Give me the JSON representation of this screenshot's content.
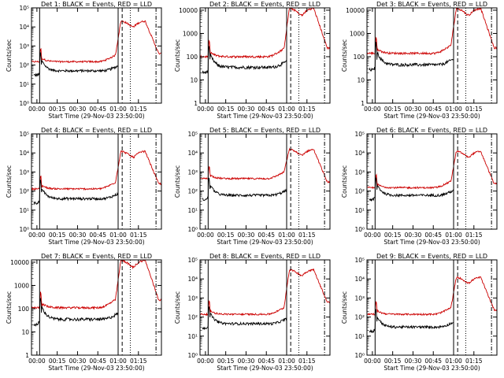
{
  "chart_data": {
    "type": "line",
    "layout": "3x3 grid",
    "shared_xlabel": "Start Time (29-Nov-03 23:50:00)",
    "shared_ylabel": "Counts/sec",
    "x_ticks": [
      "00:00",
      "00:15",
      "00:30",
      "00:45",
      "01:00",
      "01:15"
    ],
    "x_range_minutes": [
      -4,
      92
    ],
    "series_colors": {
      "Events": "#000000",
      "LLD": "#cc0000"
    },
    "panels": [
      {
        "title": "Det 1: BLACK = Events, RED = LLD",
        "y_ticks": [
          "10⁰",
          "10¹",
          "10²",
          "10³",
          "10⁴",
          "10⁵"
        ],
        "ylog": [
          0,
          5
        ],
        "levels": {
          "black_base": 50,
          "red_base": 150,
          "red_peak": 20000
        },
        "vlines": {
          "solid": [
            2,
            60
          ],
          "dashed": [
            63
          ],
          "dotted": [
            69
          ],
          "dashdot": [
            88
          ]
        }
      },
      {
        "title": "Det 2: BLACK = Events, RED = LLD",
        "y_ticks": [
          "1",
          "10",
          "100",
          "1000",
          "10000"
        ],
        "ylog": [
          0,
          4.1
        ],
        "levels": {
          "black_base": 35,
          "red_base": 100,
          "red_peak": 12000
        },
        "vlines": {
          "solid": [
            2,
            60
          ],
          "dashed": [
            63
          ],
          "dotted": [
            69
          ],
          "dashdot": [
            88
          ]
        }
      },
      {
        "title": "Det 3: BLACK = Events, RED = LLD",
        "y_ticks": [
          "1",
          "10",
          "100",
          "1000",
          "10000"
        ],
        "ylog": [
          0,
          4.1
        ],
        "levels": {
          "black_base": 45,
          "red_base": 140,
          "red_peak": 12000
        },
        "vlines": {
          "solid": [
            2,
            60
          ],
          "dashed": [
            63
          ],
          "dotted": [
            69
          ],
          "dashdot": [
            88
          ]
        }
      },
      {
        "title": "Det 4: BLACK = Events, RED = LLD",
        "y_ticks": [
          "10⁰",
          "10¹",
          "10²",
          "10³",
          "10⁴",
          "10⁵"
        ],
        "ylog": [
          0,
          5
        ],
        "levels": {
          "black_base": 40,
          "red_base": 130,
          "red_peak": 12000
        },
        "vlines": {
          "solid": [
            2,
            60
          ],
          "dashed": [
            63
          ],
          "dotted": [
            69
          ],
          "dashdot": [
            88
          ]
        }
      },
      {
        "title": "Det 5: BLACK = Events, RED = LLD",
        "y_ticks": [
          "10⁰",
          "10¹",
          "10²",
          "10³",
          "10⁴",
          "10⁵"
        ],
        "ylog": [
          0,
          5
        ],
        "levels": {
          "black_base": 60,
          "red_base": 450,
          "red_peak": 15000
        },
        "vlines": {
          "solid": [
            2,
            60
          ],
          "dashed": [
            63
          ],
          "dotted": [
            69
          ],
          "dashdot": [
            88
          ]
        }
      },
      {
        "title": "Det 6: BLACK = Events, RED = LLD",
        "y_ticks": [
          "10⁰",
          "10¹",
          "10²",
          "10³",
          "10⁴",
          "10⁵"
        ],
        "ylog": [
          0,
          5
        ],
        "levels": {
          "black_base": 60,
          "red_base": 150,
          "red_peak": 12000
        },
        "vlines": {
          "solid": [
            2,
            60
          ],
          "dashed": [
            63
          ],
          "dotted": [
            69
          ],
          "dashdot": [
            88
          ]
        }
      },
      {
        "title": "Det 7: BLACK = Events, RED = LLD",
        "y_ticks": [
          "1",
          "10",
          "100",
          "1000",
          "10000"
        ],
        "ylog": [
          0,
          4.1
        ],
        "levels": {
          "black_base": 35,
          "red_base": 110,
          "red_peak": 12000
        },
        "vlines": {
          "solid": [
            2,
            60
          ],
          "dashed": [
            63
          ],
          "dotted": [
            69
          ],
          "dashdot": [
            88
          ]
        }
      },
      {
        "title": "Det 8: BLACK = Events, RED = LLD",
        "y_ticks": [
          "10⁰",
          "10¹",
          "10²",
          "10³",
          "10⁴",
          "10⁵"
        ],
        "ylog": [
          0,
          5
        ],
        "levels": {
          "black_base": 45,
          "red_base": 140,
          "red_peak": 30000
        },
        "vlines": {
          "solid": [
            2,
            60
          ],
          "dashed": [
            63
          ],
          "dotted": [
            69
          ],
          "dashdot": [
            88
          ]
        }
      },
      {
        "title": "Det 9: BLACK = Events, RED = LLD",
        "y_ticks": [
          "10⁰",
          "10¹",
          "10²",
          "10³",
          "10⁴",
          "10⁵"
        ],
        "ylog": [
          0,
          5
        ],
        "levels": {
          "black_base": 30,
          "red_base": 140,
          "red_peak": 12000
        },
        "vlines": {
          "solid": [
            2,
            60
          ],
          "dashed": [
            63
          ],
          "dotted": [
            69
          ],
          "dashdot": [
            88
          ]
        }
      }
    ]
  }
}
